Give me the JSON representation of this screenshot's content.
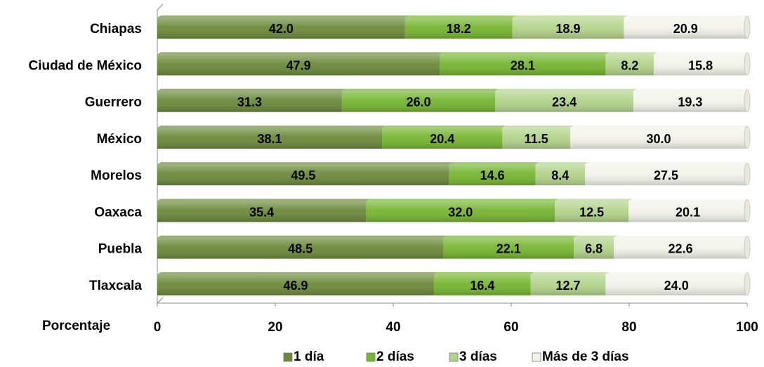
{
  "chart_data": {
    "type": "bar",
    "orientation": "horizontal",
    "stacked": true,
    "categories": [
      "Chiapas",
      "Ciudad de México",
      "Guerrero",
      "México",
      "Morelos",
      "Oaxaca",
      "Puebla",
      "Tlaxcala"
    ],
    "series": [
      {
        "name": "1 día",
        "color": "#6b8a3a",
        "values": [
          42.0,
          47.9,
          31.3,
          38.1,
          49.5,
          35.4,
          48.5,
          46.9
        ]
      },
      {
        "name": "2 días",
        "color": "#76b531",
        "values": [
          18.2,
          28.1,
          26.0,
          20.4,
          14.6,
          32.0,
          22.1,
          16.4
        ]
      },
      {
        "name": "3 días",
        "color": "#b2d38a",
        "values": [
          18.9,
          8.2,
          23.4,
          11.5,
          8.4,
          12.5,
          6.8,
          12.7
        ]
      },
      {
        "name": "Más de 3 días",
        "color": "#f3f3ec",
        "values": [
          20.9,
          15.8,
          19.3,
          30.0,
          27.5,
          20.1,
          22.6,
          24.0
        ]
      }
    ],
    "xlabel": "Porcentaje",
    "xlim": [
      0,
      100
    ],
    "xticks": [
      0,
      20,
      40,
      60,
      80,
      100
    ],
    "grid": false,
    "legend_position": "bottom"
  }
}
